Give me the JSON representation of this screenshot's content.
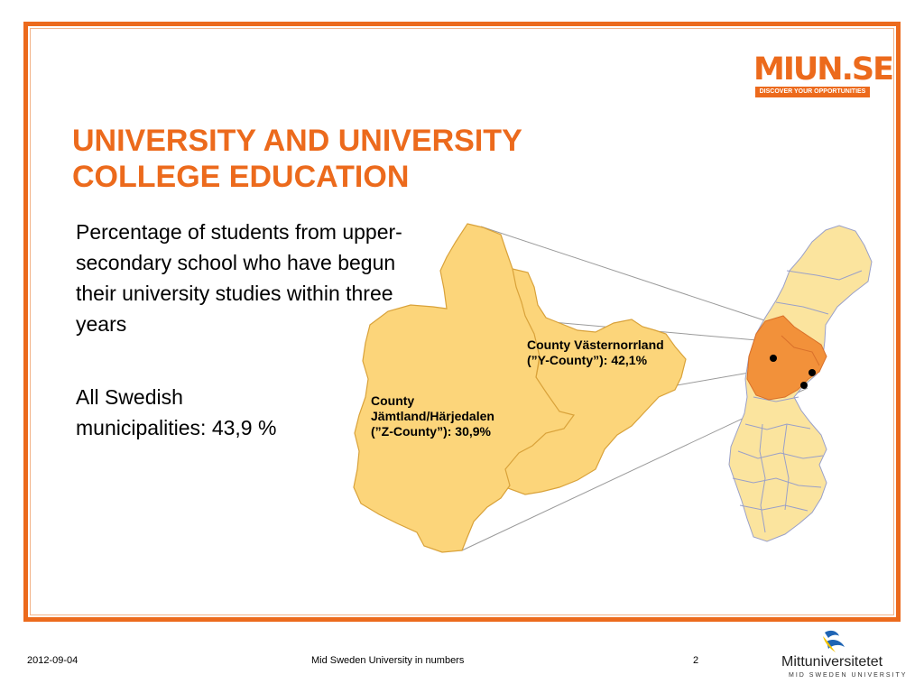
{
  "header": {
    "logo": {
      "word": "MIUN.SE",
      "tagline": "DISCOVER YOUR OPPORTUNITIES"
    }
  },
  "slide": {
    "title_lines": [
      "UNIVERSITY AND UNIVERSITY",
      "COLLEGE EDUCATION"
    ],
    "intro": "Percentage of students from upper-secondary school who have begun their university studies within three years",
    "stat_lines": [
      "All Swedish",
      "municipalities: 43,9 %"
    ]
  },
  "map": {
    "callout_y": [
      "County Västernorrland",
      "(”Y-County”): 42,1%"
    ],
    "callout_z": [
      "County",
      "Jämtland/Härjedalen",
      "(”Z-County”): 30,9%"
    ]
  },
  "footer": {
    "date": "2012-09-04",
    "center": "Mid Sweden University in numbers",
    "page": "2",
    "university_name": "Mittuniversitetet",
    "university_sub": "MID SWEDEN UNIVERSITY"
  },
  "colors": {
    "accent": "#ec6a1c",
    "county_fill": "#fcd57a",
    "county_stroke": "#d9a23a",
    "sweden_fill": "#fbe49e",
    "highlight_fill": "#f2913a"
  }
}
